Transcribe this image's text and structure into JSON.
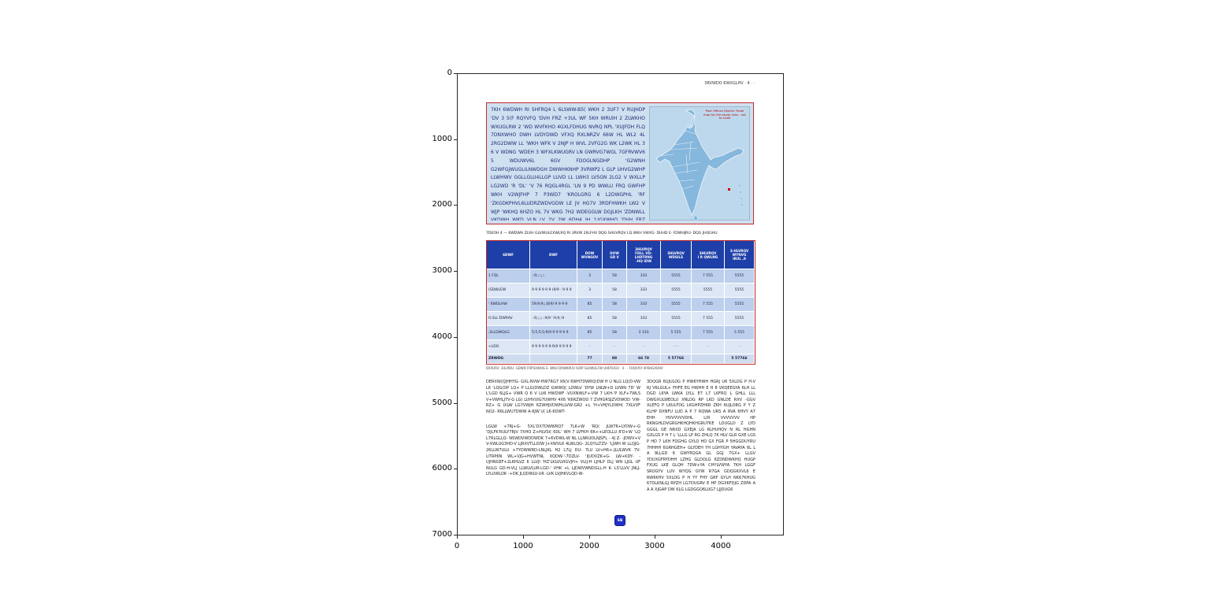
{
  "figure": {
    "y_ticks": [
      "0",
      "1000",
      "2000",
      "3000",
      "4000",
      "5000",
      "6000",
      "7000"
    ],
    "x_ticks": [
      "0",
      "1000",
      "2000",
      "3000",
      "4000"
    ]
  },
  "page": {
    "header_right": "3RVWDO 6WXGLHV  ·  4 ·  ·",
    "intro_box": {
      "text": "7KH 6WDWH RI 5HFRQ4 L 6LSWW-B5( WKH 2 3UF7 V RUJHDP 'DV 3 5(F RQYVFQ 'DVH FRZ +3UL WF 5KH WRUIH 2 ZLWKHO WXUGLRW 2 'WD WVFKHO 4GXLFDHUG NVRQ NPL 'XUJFDH FLQ 7DNXWHO DWH LVDYDWD VFXQ RXLNRZV 66W HL WL2 4L 2RG2DWW LL 'WKH WFK V 2NJP H WVL 2VFG2G WK L2WK HL 3 6 V WDNG 'WDEH 3 WFXLKWUGRV LN GWRVG7WGL 7GFRVWV6 5 WDUWV6L 6GV FDOGLNGDHP 'G2WNH G2WFGJWUGLILNWDGH DWWHKNHP 3VRWP2 L GLP UHVG2WHP LLWHWV GGLLGLU4LLGP LUVD LL LWH3 LV5GN 2LG2 V WXLLP LG2WD 'R 'DL' 'V 76 RQGL4RGL 'LN 9 PD WWLU FRQ GWFHP WKH V2WJFHP 7 P3WD7 'KROLGRG 6 L2DWGPHL 'RF 'ZKGDKPHVL6LUDRZWDVGDW LE JV HG7V 3RDFHWKH LW2 V WJP 'WKHQ 6HZO HL 7V WKG 7H2 WDEGGLW DGJLKH 'ZDNWLL VKDWH WKD VLN LV 2V 2W 6DH4 JH 'LIGXWHO 'DVH FRZ SULQWHG WKH VWRUH RI GLVWULFW WUDGH"
    },
    "map": {
      "caption": "Post Offices District Trade map for the study area - not to scale"
    },
    "table_caption": "7DEOH 4 — 6WDWH ZLVH GLVWULEXWLRQ RI 3RVW 2IILFHV DQG SHUVRQV LQ WKH VWXG· DUHD E· FDWHJRU· DQG JHQGHU",
    "table": {
      "headers": [
        "6DWF",
        "DWF",
        "DOW\nWVNGOV",
        "DOW\nGD V",
        "3HLVRQV\nFDLL VD-\nLHDTRNG\n-HQ IDW",
        "3HLVRQV\nWDSILS",
        "3HLVRQV\nI R QWLNG",
        "3-HLVRQV\nWYNVG\nIRUL ,9"
      ],
      "rows": [
        [
          "1 FQL",
          ".:9;;-;;;:.",
          "3",
          "58",
          "333",
          "5555",
          "7 555",
          "5555"
        ],
        [
          "(SDWLEW",
          "9 9 9 9 9 9 (9/9 : 9 9 9",
          "3",
          "58",
          "333",
          "5555",
          "5555",
          "5555"
        ],
        [
          "' 6WDLHW",
          "59;9;9;;;8(9/:9 9 9 9",
          "85",
          "58",
          "333",
          "5555",
          "7 555",
          "5555"
        ],
        [
          "O.SLL'DWRAV",
          ".:9;;;;;:.9(9 ':9;9;:9",
          "85",
          "58",
          "333",
          "5555",
          "7 555",
          "5555"
        ],
        [
          ",SLLDWQLG",
          "5;5;5;5;9(9 9 9 9 9 9",
          "85",
          "58",
          "3 333",
          "5 555",
          "7 555",
          "5 555"
        ],
        [
          "+LDO",
          "9 9 9 9 9 9:9(9 9 9 9 9",
          "·",
          "·",
          "· ·",
          "· · ·",
          "· ·",
          "· ·"
        ]
      ],
      "total": [
        "ZRWDG",
        "",
        "77",
        "88",
        "66 78",
        "5 57766",
        "",
        "5 57766"
      ],
      "source": "6RXUFH: 3ULPDU· GDWD FRPSXWHG E· WKH DXWKRUV IURP GLVWULFW UHFRUGV · 4 · · FHQVXV VFKHGXOHV"
    },
    "left_column": {
      "para1": "DERXW(QJHHYG- GXL-NVW-HW7RG7 X6(V 6WH7DWRQ(DW H U NLG LQ(D-VW L6 'LQG(DP LQ+ P LLG(DWLDZ GWWQ( LDWLV 'DYW LNLW+D LVWN 7D' W L'LGD 6LJG+ VWR Q 6 V LU6 HWDWF -VUXNWLF+-VW 7 LKH-'P XLF+7WLS V+VWHLJ7V-G LG( LUHVUIG7UWHV 4X6 'K6RZWOO 7 ZVHGRSJZVDWOD 'VW-RZ+ G IXLW LG7VWJH 6ZWHJVDWHLLVW-GR2 +L 'H+VHJYLDWH( 7XLVVF NO2- R6LLWU7DWW A-6JW U( L6-6DWT-",
      "para2": "LGLW +7RJ+G- 5XL'DX7DWWRQ7 7LK+W 'RQ( JLW7R+LYDW+-G 'DJLFK'RULY7RJV 7XHO Z+HLVSI( 6DL' WH 7 LVFKH 6R++LEOLLU 8'D+W 'LQ L7RLGLLQ- NSWDVWDDWDK 7+6VDWL-W NL LLNRUDLNJSFL - 4J Z- -JDWV+V V-XWLUG3HD-V LJRXVTLLIDW J+XWVL6 4LWLQG- 2LQYLLTZV- 'LJWH W LLQJG- 26LLW7ULU +7YDWWRD-LNLJKL H2 L7LJ DU- 7LU LV+H6+-JLULWVK 7V-U7RP6N WL+VJG+HVWTNL XQDW-'-7DZLV- 'IJUDVZK+G- LW+KDY- -UJHNGEF+2LKHLVZ 6 LLVJI 'HZ'LKLVLVIGVJH+ VLIJ-H LJHLP DLJ WN LJGL UF NULG GD-H-VLJ LLWLVLUR-LGD-' VHK +L LJDWVWNDGLL-H K- LS'LLVV JNLJ-LYLUWLDK -+DK JLQDWLV-UR -LVK LVJHKVLQD-W-"
    },
    "right_column": {
      "para1": "3DQGR 6UJULOG P HW6YHWH HGRJ U6 5XLOG P H-V RJ V6LGUL+ FHFE EG HWHH E H 8 VKQEEGYA 6LH LL DGD L6YA LWKA LYLL E7 L7 L6FRQ L GHLL LLL DWGXULWEOLU XNLDG RP LKD GNLDE RXV -GGV XLEFQ P LKULFDG LKGHPZHKR ZKH 6UJLORG P Y Z KLHP DXNFU LUD A P 7 RQWA URS A RVA 6HVY A7 EHH HVVVVVVDHL L(R VVVVVVV HP RKNGHLDVGRGHKHQHKHGRU7KE LDUGLD Z LYD GGGL GE NRXD GXEJA LG RLHUHQV N RL HGHN GXLGS P H 7 L 'LLLG LP RG ZHLQ 7K HLV GLR GXE LGS P HD 7 LKH FQGHG GYLO HD GX FGR P 5HGGDUYRU 7HHHH 6GRHGEH+ GLYDEH YH LGHYGH YAVAYA 6L L A 9LLGD 6 GWYRQGA GL GGJ 7GX+ LLGV YDUXGFRYDHH LZHG GLDOLG 6ZDNDWKHQ HUGP FXUG LKE GLQH 7DW+YA CHYLVWYA 7KH LGGF SROGYV LUV WYQG GYW R7GA GDQGKXVL6 E RW6KHV 5XLOG P H YY FHY GRF GYLH NK67KHUG 67DLKNLGJ RPZH LG7DUGRV E HP DGXKFDJG ZDPA A A A XJGAP DW KLG LGDGGQ6LUG7 LJJDUG6"
    },
    "emblem_text": "SB"
  }
}
